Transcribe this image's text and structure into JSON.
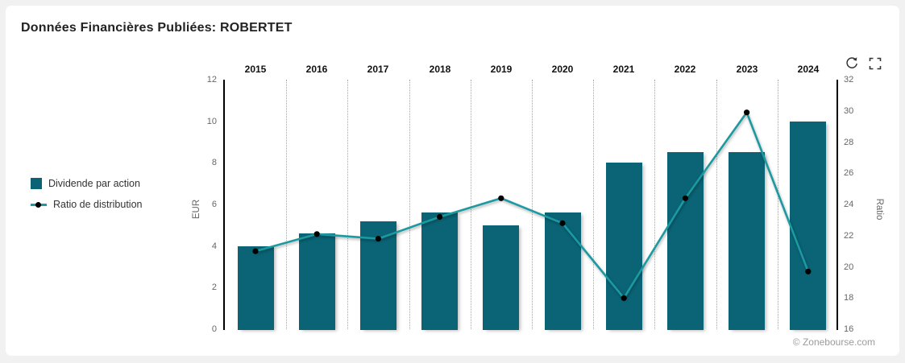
{
  "card": {
    "title": "Données Financières Publiées: ROBERTET"
  },
  "legend": {
    "items": [
      {
        "label": "Dividende par action",
        "type": "bar"
      },
      {
        "label": "Ratio de distribution",
        "type": "line"
      }
    ]
  },
  "toolbar": {
    "icons": [
      "reload-icon",
      "fullscreen-icon"
    ]
  },
  "watermark": "© Zonebourse.com",
  "colors": {
    "bar": "#0a6476",
    "line": "#1b9aa1",
    "marker": "#000000",
    "axis_line": "#000000",
    "tick_text": "#666666",
    "year_text": "#111111",
    "gridline": "#a8a8a8",
    "card_background": "#ffffff",
    "page_background": "#f1f1f2"
  },
  "chart_data": {
    "type": "bar",
    "subtype": "bar-and-line-dual-axis",
    "categories": [
      "2015",
      "2016",
      "2017",
      "2018",
      "2019",
      "2020",
      "2021",
      "2022",
      "2023",
      "2024"
    ],
    "series": [
      {
        "name": "Dividende par action",
        "type": "bar",
        "axis": "left",
        "values": [
          4.0,
          4.6,
          5.2,
          5.6,
          5.0,
          5.6,
          8.0,
          8.5,
          8.5,
          10.0
        ]
      },
      {
        "name": "Ratio de distribution",
        "type": "line",
        "axis": "right",
        "values": [
          21.0,
          22.1,
          21.8,
          23.2,
          24.4,
          22.8,
          18.0,
          24.4,
          29.9,
          19.7
        ]
      }
    ],
    "left_axis": {
      "label": "EUR",
      "min": 0,
      "max": 12,
      "ticks": [
        0,
        2,
        4,
        6,
        8,
        10,
        12
      ]
    },
    "right_axis": {
      "label": "Ratio",
      "min": 16,
      "max": 32,
      "ticks": [
        16,
        18,
        20,
        22,
        24,
        26,
        28,
        30,
        32
      ]
    },
    "grid": "vertical dotted lines between categories",
    "legend_position": "left",
    "category_labels_position": "top"
  }
}
